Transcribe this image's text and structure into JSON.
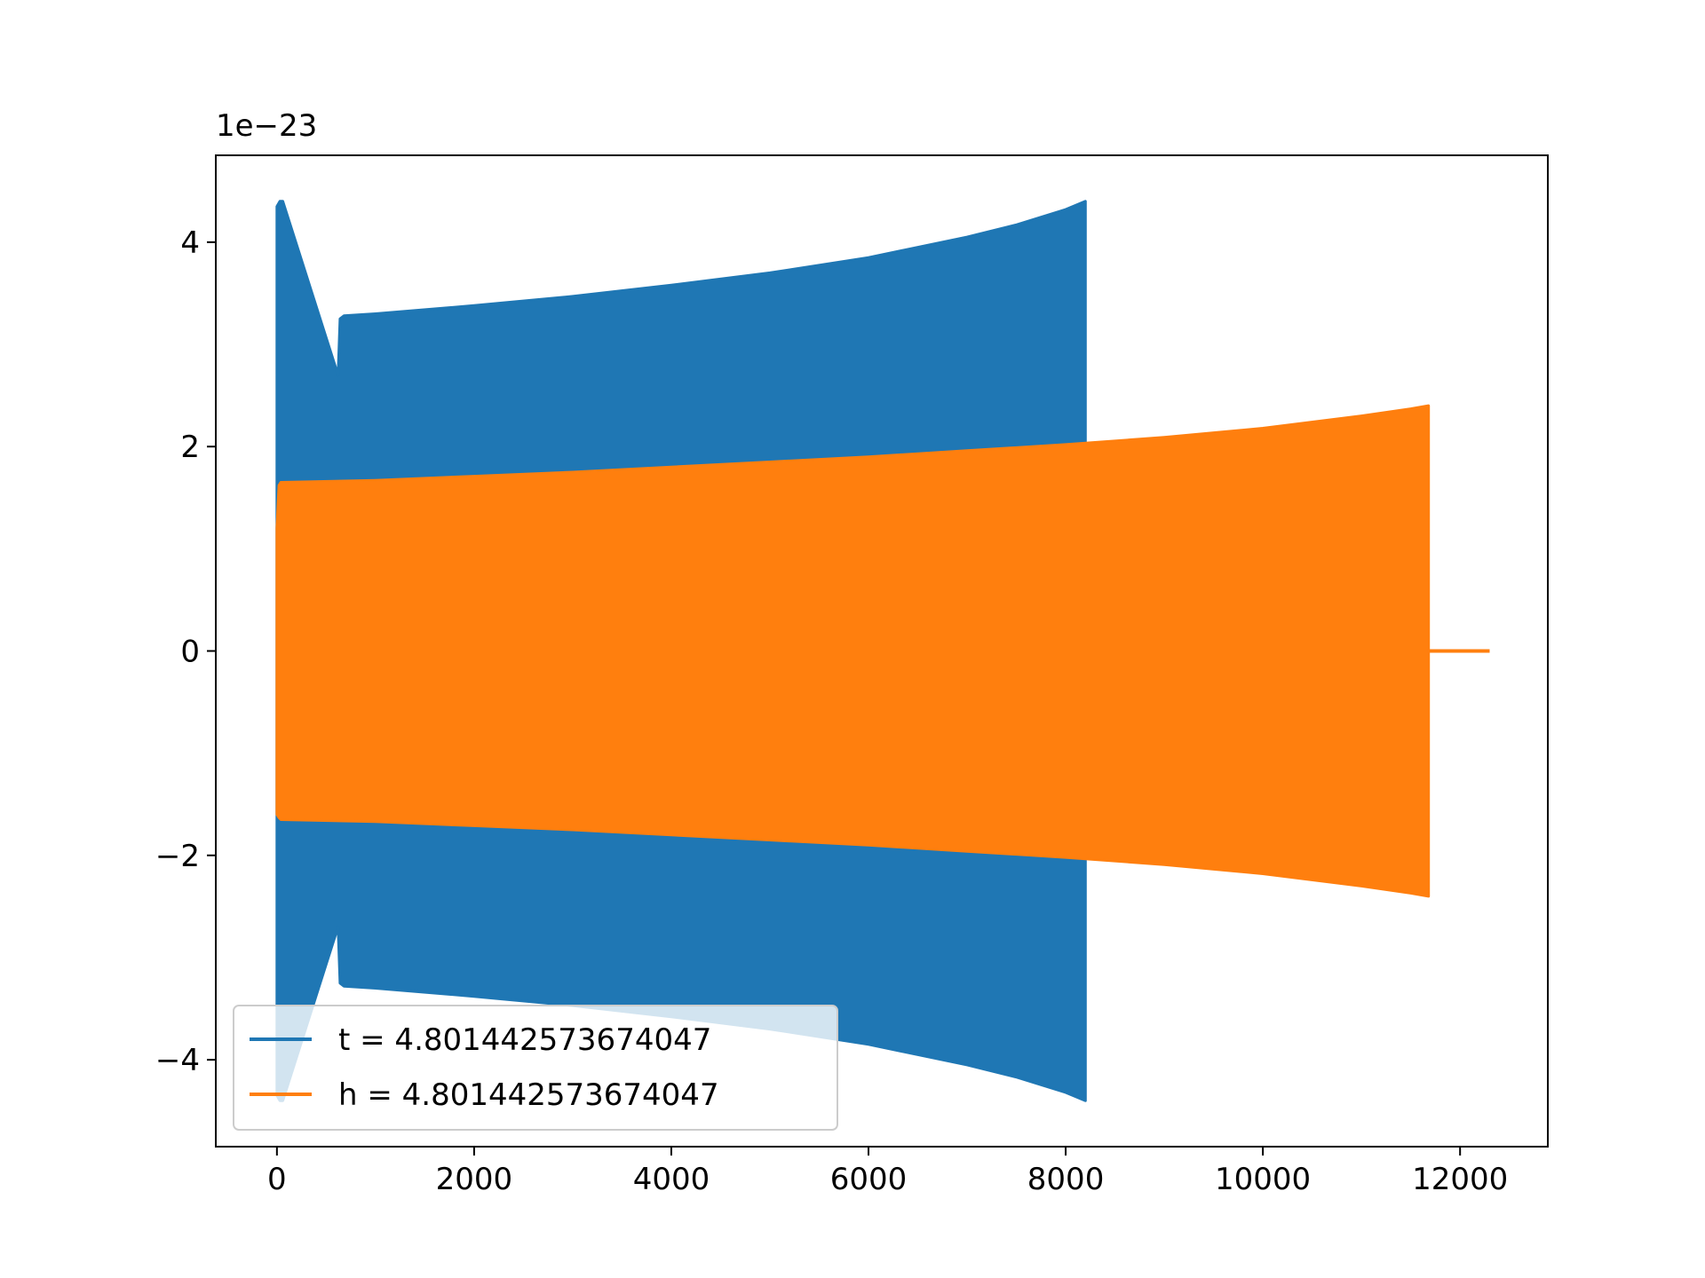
{
  "chart_data": {
    "type": "line",
    "title": "",
    "xlabel": "",
    "ylabel": "",
    "y_offset_label": "1e−23",
    "xlim": [
      -620,
      12890
    ],
    "ylim": [
      -4.85,
      4.85
    ],
    "x_ticks": [
      0,
      2000,
      4000,
      6000,
      8000,
      10000,
      12000
    ],
    "x_tick_labels": [
      "0",
      "2000",
      "4000",
      "6000",
      "8000",
      "10000",
      "12000"
    ],
    "y_ticks": [
      -4,
      -2,
      0,
      2,
      4
    ],
    "y_tick_labels": [
      "−4",
      "−2",
      "0",
      "2",
      "4"
    ],
    "grid": false,
    "legend_position": "lower-left",
    "series": [
      {
        "name": "t = 4.801442573674047",
        "color": "#1f77b4",
        "envelope": {
          "x": [
            0,
            30,
            60,
            620,
            640,
            680,
            1000,
            2000,
            3000,
            4000,
            5000,
            6000,
            7000,
            7500,
            8000,
            8200
          ],
          "upper": [
            4.35,
            4.4,
            4.4,
            2.7,
            3.25,
            3.28,
            3.3,
            3.38,
            3.47,
            3.58,
            3.7,
            3.85,
            4.05,
            4.17,
            4.32,
            4.4
          ],
          "lower": [
            -4.35,
            -4.4,
            -4.4,
            -2.7,
            -3.25,
            -3.28,
            -3.3,
            -3.38,
            -3.47,
            -3.58,
            -3.7,
            -3.85,
            -4.05,
            -4.17,
            -4.32,
            -4.4
          ]
        }
      },
      {
        "name": "h = 4.801442573674047",
        "color": "#ff7f0e",
        "envelope": {
          "x": [
            0,
            20,
            40,
            1000,
            2000,
            3000,
            4000,
            5000,
            6000,
            7000,
            8000,
            9000,
            10000,
            11000,
            11500,
            11680
          ],
          "upper": [
            1.2,
            1.62,
            1.65,
            1.67,
            1.71,
            1.75,
            1.8,
            1.85,
            1.9,
            1.96,
            2.02,
            2.09,
            2.18,
            2.3,
            2.37,
            2.4
          ],
          "lower": [
            -1.6,
            -1.63,
            -1.65,
            -1.67,
            -1.71,
            -1.75,
            -1.8,
            -1.85,
            -1.9,
            -1.96,
            -2.02,
            -2.09,
            -2.18,
            -2.3,
            -2.37,
            -2.4
          ]
        },
        "tail": {
          "x": [
            11680,
            12300
          ],
          "y": [
            0,
            0
          ]
        }
      }
    ]
  }
}
